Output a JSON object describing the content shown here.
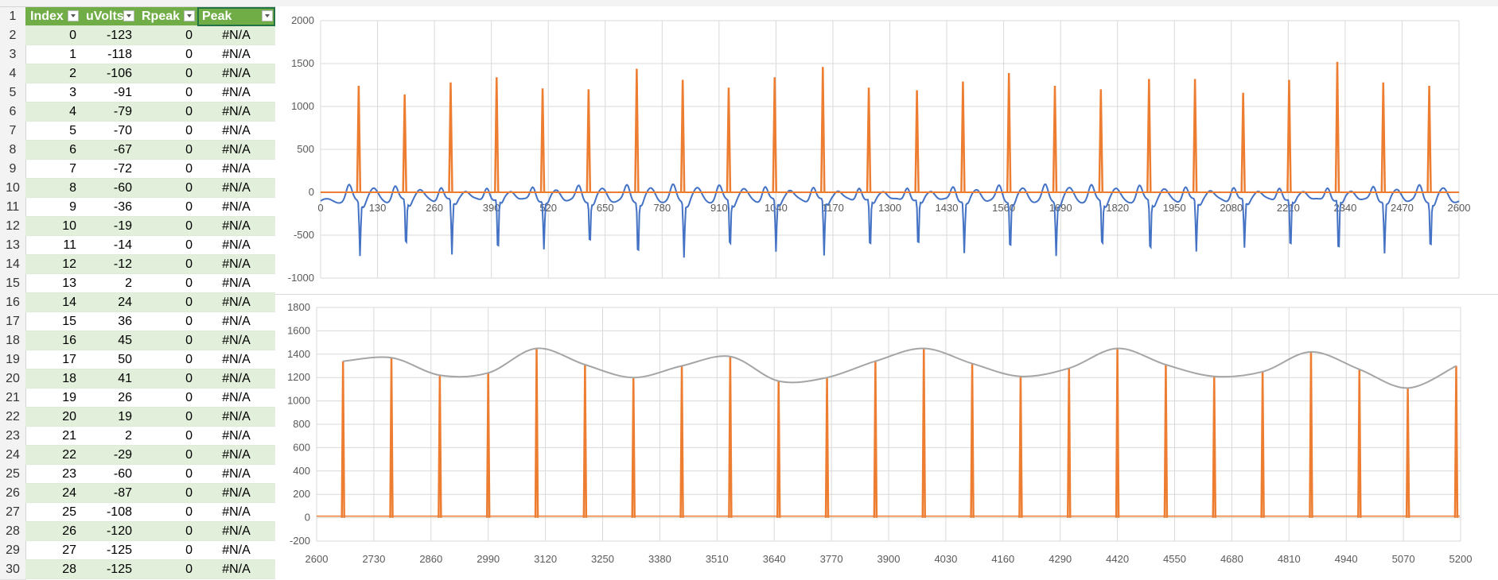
{
  "sheet": {
    "columns": [
      "Index",
      "uVolts",
      "Rpeak",
      "Peak"
    ],
    "rows": [
      {
        "row": "2",
        "index": "0",
        "uvolts": "-123",
        "rpeak": "0",
        "peak": "#N/A"
      },
      {
        "row": "3",
        "index": "1",
        "uvolts": "-118",
        "rpeak": "0",
        "peak": "#N/A"
      },
      {
        "row": "4",
        "index": "2",
        "uvolts": "-106",
        "rpeak": "0",
        "peak": "#N/A"
      },
      {
        "row": "5",
        "index": "3",
        "uvolts": "-91",
        "rpeak": "0",
        "peak": "#N/A"
      },
      {
        "row": "6",
        "index": "4",
        "uvolts": "-79",
        "rpeak": "0",
        "peak": "#N/A"
      },
      {
        "row": "7",
        "index": "5",
        "uvolts": "-70",
        "rpeak": "0",
        "peak": "#N/A"
      },
      {
        "row": "8",
        "index": "6",
        "uvolts": "-67",
        "rpeak": "0",
        "peak": "#N/A"
      },
      {
        "row": "9",
        "index": "7",
        "uvolts": "-72",
        "rpeak": "0",
        "peak": "#N/A"
      },
      {
        "row": "10",
        "index": "8",
        "uvolts": "-60",
        "rpeak": "0",
        "peak": "#N/A"
      },
      {
        "row": "11",
        "index": "9",
        "uvolts": "-36",
        "rpeak": "0",
        "peak": "#N/A"
      },
      {
        "row": "12",
        "index": "10",
        "uvolts": "-19",
        "rpeak": "0",
        "peak": "#N/A"
      },
      {
        "row": "13",
        "index": "11",
        "uvolts": "-14",
        "rpeak": "0",
        "peak": "#N/A"
      },
      {
        "row": "14",
        "index": "12",
        "uvolts": "-12",
        "rpeak": "0",
        "peak": "#N/A"
      },
      {
        "row": "15",
        "index": "13",
        "uvolts": "2",
        "rpeak": "0",
        "peak": "#N/A"
      },
      {
        "row": "16",
        "index": "14",
        "uvolts": "24",
        "rpeak": "0",
        "peak": "#N/A"
      },
      {
        "row": "17",
        "index": "15",
        "uvolts": "36",
        "rpeak": "0",
        "peak": "#N/A"
      },
      {
        "row": "18",
        "index": "16",
        "uvolts": "45",
        "rpeak": "0",
        "peak": "#N/A"
      },
      {
        "row": "19",
        "index": "17",
        "uvolts": "50",
        "rpeak": "0",
        "peak": "#N/A"
      },
      {
        "row": "20",
        "index": "18",
        "uvolts": "41",
        "rpeak": "0",
        "peak": "#N/A"
      },
      {
        "row": "21",
        "index": "19",
        "uvolts": "26",
        "rpeak": "0",
        "peak": "#N/A"
      },
      {
        "row": "22",
        "index": "20",
        "uvolts": "19",
        "rpeak": "0",
        "peak": "#N/A"
      },
      {
        "row": "23",
        "index": "21",
        "uvolts": "2",
        "rpeak": "0",
        "peak": "#N/A"
      },
      {
        "row": "24",
        "index": "22",
        "uvolts": "-29",
        "rpeak": "0",
        "peak": "#N/A"
      },
      {
        "row": "25",
        "index": "23",
        "uvolts": "-60",
        "rpeak": "0",
        "peak": "#N/A"
      },
      {
        "row": "26",
        "index": "24",
        "uvolts": "-87",
        "rpeak": "0",
        "peak": "#N/A"
      },
      {
        "row": "27",
        "index": "25",
        "uvolts": "-108",
        "rpeak": "0",
        "peak": "#N/A"
      },
      {
        "row": "28",
        "index": "26",
        "uvolts": "-120",
        "rpeak": "0",
        "peak": "#N/A"
      },
      {
        "row": "29",
        "index": "27",
        "uvolts": "-125",
        "rpeak": "0",
        "peak": "#N/A"
      },
      {
        "row": "30",
        "index": "28",
        "uvolts": "-125",
        "rpeak": "0",
        "peak": "#N/A"
      }
    ],
    "header_row_number": "1",
    "colors": {
      "header": "#70ad47",
      "band": "#e2efda"
    }
  },
  "chart_data": [
    {
      "type": "line",
      "xlim": [
        0,
        2600
      ],
      "x_ticks": [
        "0",
        "130",
        "260",
        "390",
        "520",
        "650",
        "780",
        "910",
        "1040",
        "1170",
        "1300",
        "1430",
        "1560",
        "1690",
        "1820",
        "1950",
        "2080",
        "2210",
        "2340",
        "2470",
        "2600"
      ],
      "ylim": [
        -1000,
        2000
      ],
      "y_ticks": [
        "-1000",
        "-500",
        "0",
        "500",
        "1000",
        "1500",
        "2000"
      ],
      "grid": true,
      "series": [
        {
          "color": "#4472c4",
          "peaks_x": [
            90,
            195,
            300,
            405,
            510,
            615,
            725,
            830,
            935,
            1040,
            1150,
            1255,
            1365,
            1470,
            1575,
            1680,
            1785,
            1895,
            2000,
            2110,
            2215,
            2325,
            2430,
            2535
          ],
          "peaks_y": [
            -620,
            -580,
            -640,
            -650,
            -560,
            -520,
            -660,
            -630,
            -580,
            -600,
            -650,
            -620,
            -600,
            -600,
            -590,
            -610,
            -570,
            -640,
            -600,
            -560,
            -620,
            -660,
            -600,
            -580
          ]
        },
        {
          "color": "#ed7d31",
          "peaks_x": [
            90,
            195,
            300,
            405,
            510,
            615,
            725,
            830,
            935,
            1040,
            1150,
            1255,
            1365,
            1470,
            1575,
            1680,
            1785,
            1895,
            2000,
            2110,
            2215,
            2325,
            2430,
            2535
          ],
          "peaks_y": [
            1240,
            1140,
            1280,
            1340,
            1210,
            1200,
            1440,
            1310,
            1220,
            1340,
            1460,
            1220,
            1190,
            1290,
            1390,
            1240,
            1200,
            1320,
            1320,
            1160,
            1310,
            1520,
            1280,
            1240
          ]
        }
      ]
    },
    {
      "type": "line",
      "xlim": [
        2600,
        5200
      ],
      "x_ticks": [
        "2600",
        "2730",
        "2860",
        "2990",
        "3120",
        "3250",
        "3380",
        "3510",
        "3640",
        "3770",
        "3900",
        "4030",
        "4160",
        "4290",
        "4420",
        "4550",
        "4680",
        "4810",
        "4940",
        "5070",
        "5200"
      ],
      "ylim": [
        -200,
        1800
      ],
      "y_ticks": [
        "-200",
        "0",
        "200",
        "400",
        "600",
        "800",
        "1000",
        "1200",
        "1400",
        "1600",
        "1800"
      ],
      "grid": true,
      "series": [
        {
          "color": "#ed7d31",
          "x": [
            2660,
            2770,
            2880,
            2990,
            3100,
            3210,
            3320,
            3430,
            3540,
            3650,
            3760,
            3870,
            3980,
            4090,
            4200,
            4310,
            4420,
            4530,
            4640,
            4750,
            4860,
            4970,
            5080,
            5190
          ],
          "y": [
            1340,
            1370,
            1220,
            1240,
            1450,
            1310,
            1200,
            1300,
            1380,
            1170,
            1200,
            1340,
            1450,
            1320,
            1210,
            1280,
            1450,
            1310,
            1210,
            1250,
            1420,
            1270,
            1110,
            1300
          ]
        },
        {
          "color": "#a5a5a5",
          "x": [
            2660,
            2770,
            2880,
            2990,
            3100,
            3210,
            3320,
            3430,
            3540,
            3650,
            3760,
            3870,
            3980,
            4090,
            4200,
            4310,
            4420,
            4530,
            4640,
            4750,
            4860,
            4970,
            5080,
            5190
          ],
          "y": [
            1340,
            1370,
            1220,
            1240,
            1450,
            1310,
            1200,
            1300,
            1380,
            1170,
            1200,
            1340,
            1450,
            1320,
            1210,
            1280,
            1450,
            1310,
            1210,
            1250,
            1420,
            1270,
            1110,
            1300
          ]
        }
      ]
    }
  ]
}
